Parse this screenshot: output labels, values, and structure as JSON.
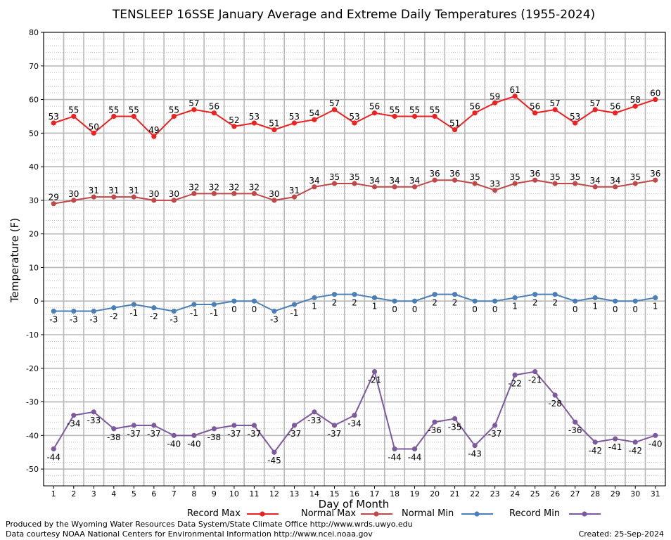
{
  "chart_data": {
    "type": "line",
    "title": "TENSLEEP 16SSE January Average and Extreme Daily Temperatures (1955-2024)",
    "xlabel": "Day of Month",
    "ylabel": "Temperature (F)",
    "ylim": [
      -55,
      80
    ],
    "yticks": [
      -50,
      -40,
      -30,
      -20,
      -10,
      0,
      10,
      20,
      30,
      40,
      50,
      60,
      70,
      80
    ],
    "x": [
      1,
      2,
      3,
      4,
      5,
      6,
      7,
      8,
      9,
      10,
      11,
      12,
      13,
      14,
      15,
      16,
      17,
      18,
      19,
      20,
      21,
      22,
      23,
      24,
      25,
      26,
      27,
      28,
      29,
      30,
      31
    ],
    "grid": true,
    "legend_position": "bottom",
    "series": [
      {
        "name": "Record Max",
        "color": "#ee2020",
        "label_pos": "above",
        "values": [
          53,
          55,
          50,
          55,
          55,
          49,
          55,
          57,
          56,
          52,
          53,
          51,
          53,
          54,
          57,
          53,
          56,
          55,
          55,
          55,
          51,
          56,
          59,
          61,
          56,
          57,
          53,
          57,
          56,
          58,
          60
        ]
      },
      {
        "name": "Normal Max",
        "color": "#c04848",
        "label_pos": "above",
        "values": [
          29,
          30,
          31,
          31,
          31,
          30,
          30,
          32,
          32,
          32,
          32,
          30,
          31,
          34,
          35,
          35,
          34,
          34,
          34,
          36,
          36,
          35,
          33,
          35,
          36,
          35,
          35,
          34,
          34,
          35,
          36
        ]
      },
      {
        "name": "Normal Min",
        "color": "#4a7fb8",
        "label_pos": "below",
        "values": [
          -3,
          -3,
          -3,
          -2,
          -1,
          -2,
          -3,
          -1,
          -1,
          0,
          0,
          -3,
          -1,
          1,
          2,
          2,
          1,
          0,
          0,
          2,
          2,
          0,
          0,
          1,
          2,
          2,
          0,
          1,
          0,
          0,
          1
        ]
      },
      {
        "name": "Record Min",
        "color": "#7d5a9e",
        "label_pos": "below",
        "values": [
          -44,
          -34,
          -33,
          -38,
          -37,
          -37,
          -40,
          -40,
          -38,
          -37,
          -37,
          -45,
          -37,
          -33,
          -37,
          -34,
          -21,
          -44,
          -44,
          -36,
          -35,
          -43,
          -37,
          -22,
          -21,
          -28,
          -36,
          -42,
          -41,
          -42,
          -40
        ]
      }
    ]
  },
  "footer": {
    "produced_by": "Produced by the Wyoming Water Resources Data System/State Climate Office http://www.wrds.uwyo.edu",
    "courtesy": "Data courtesy NOAA National Centers for Environmental Information http://www.ncei.noaa.gov",
    "created": "Created:  25-Sep-2024"
  }
}
